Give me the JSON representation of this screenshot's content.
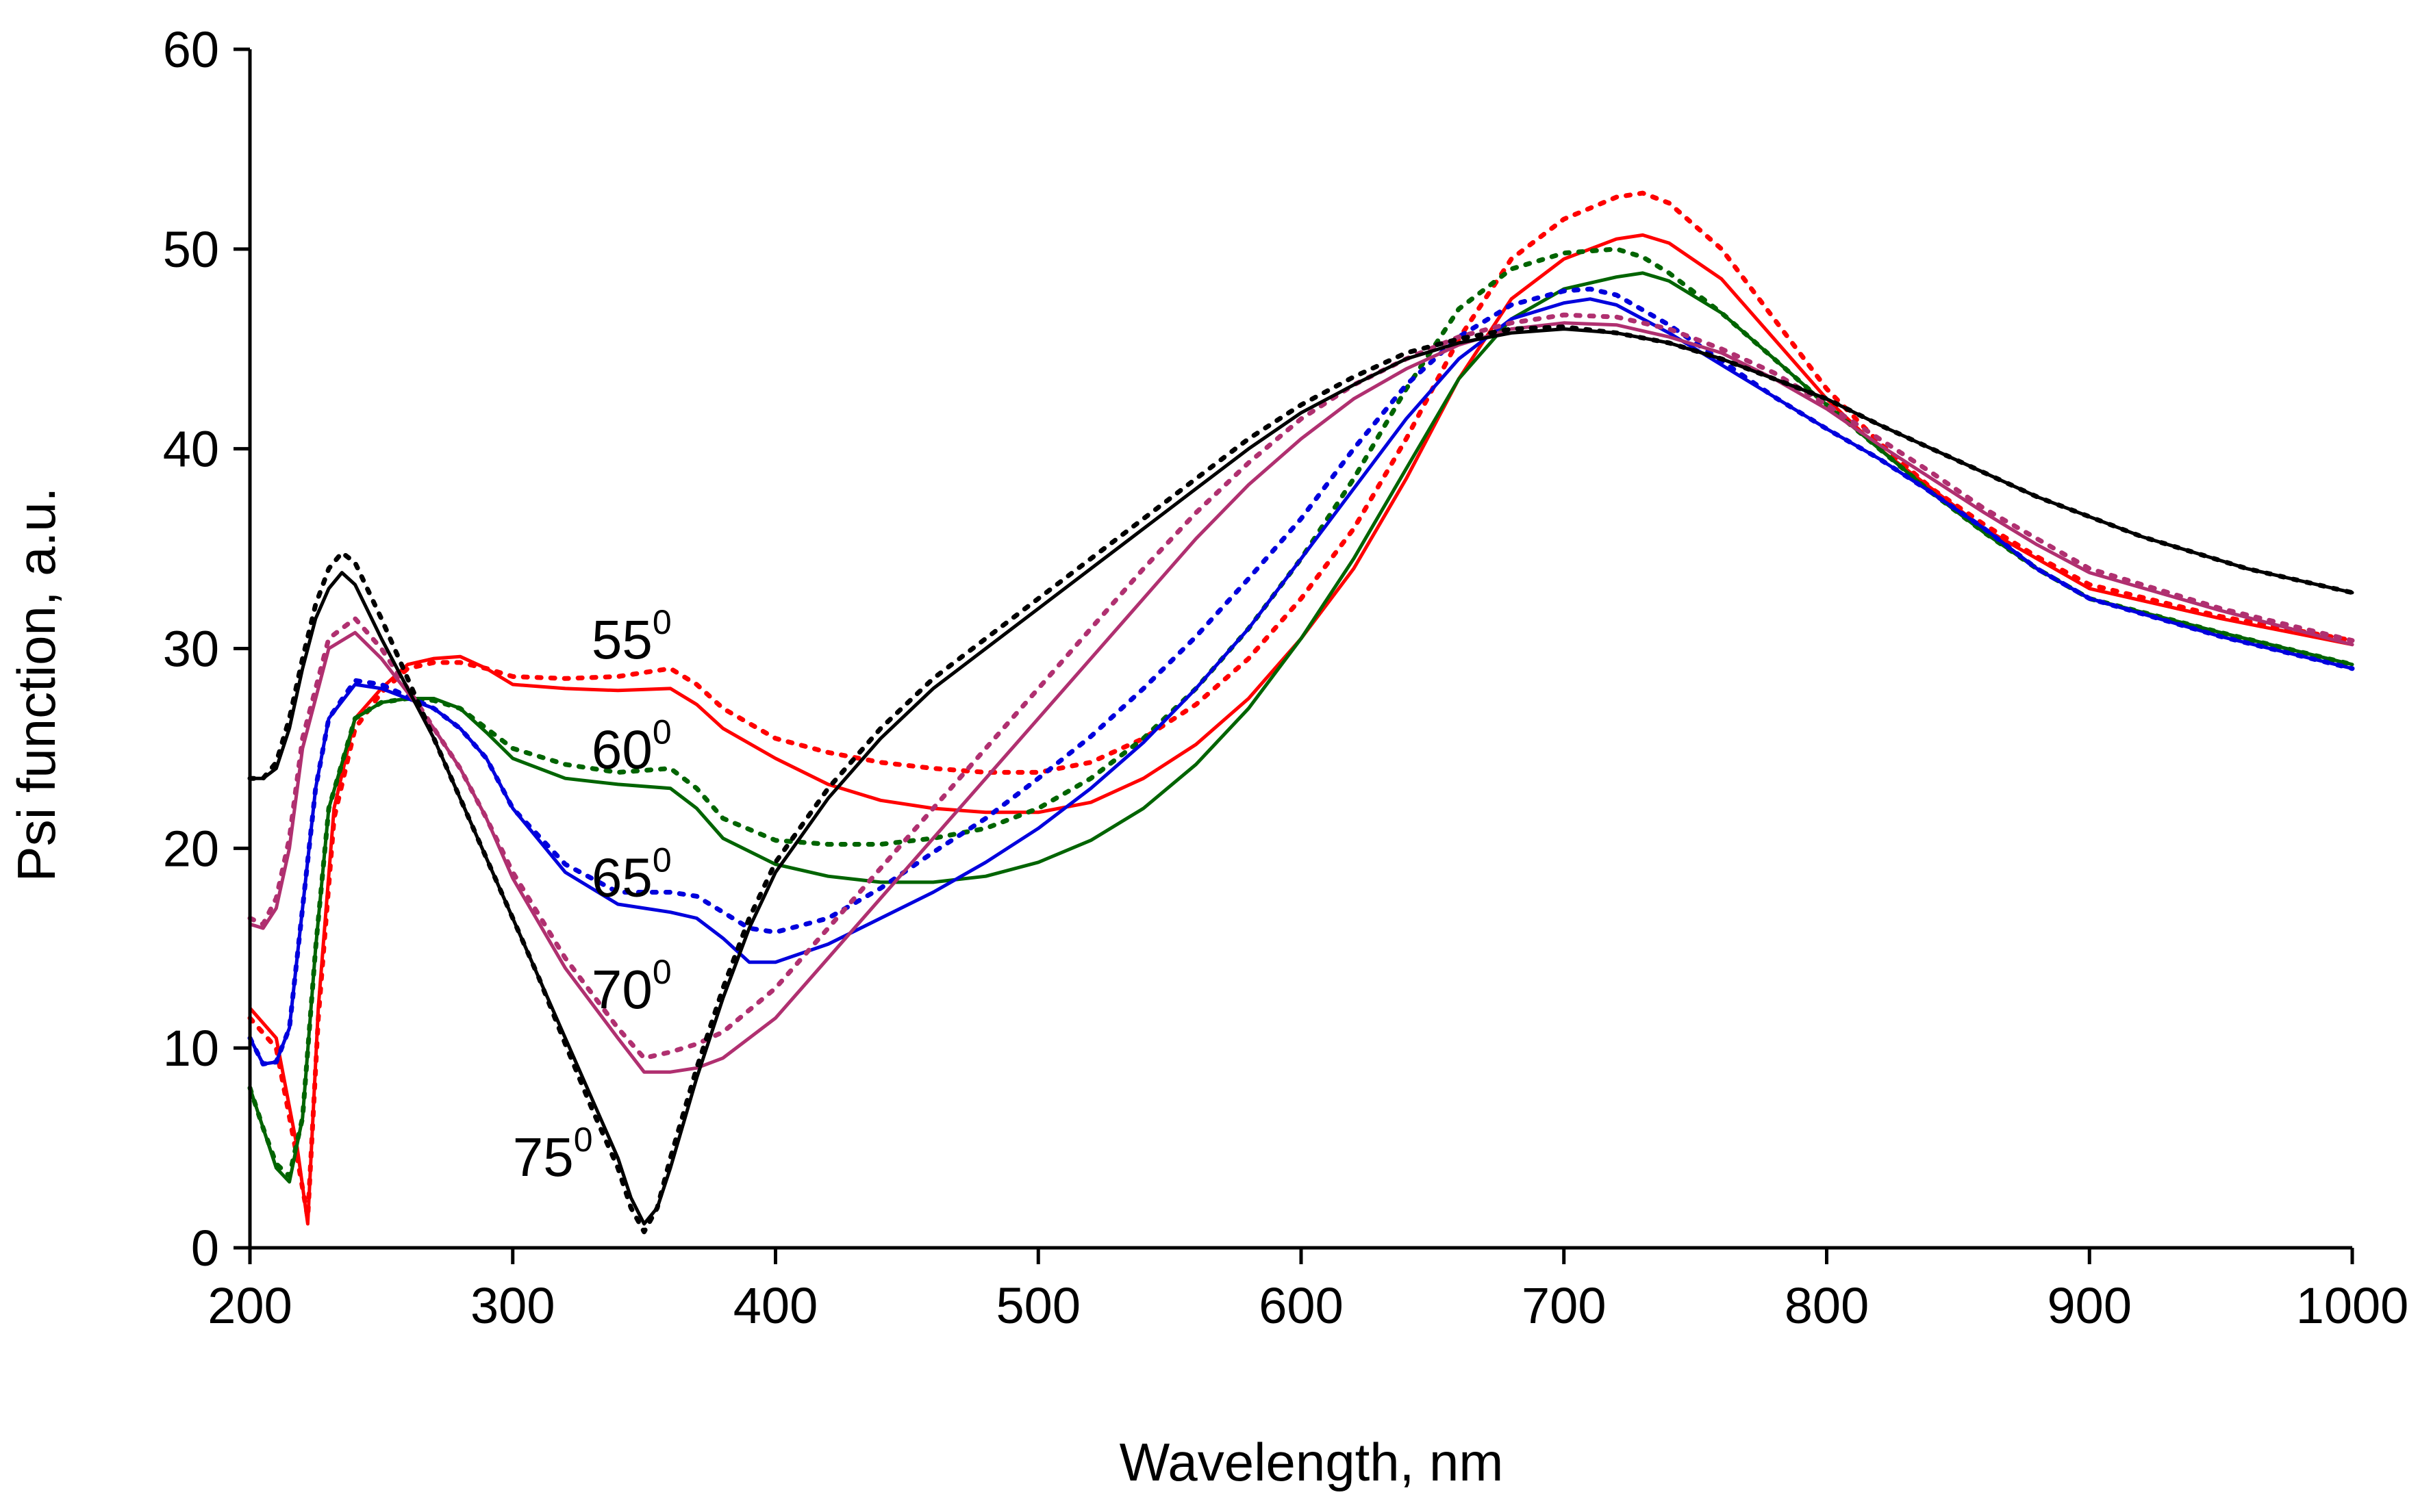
{
  "chart_data": {
    "type": "line",
    "title": "",
    "xlabel": "Wavelength, nm",
    "ylabel": "Psi function, a.u.",
    "xlim": [
      200,
      1000
    ],
    "ylim": [
      0,
      60
    ],
    "xticks": [
      200,
      300,
      400,
      500,
      600,
      700,
      800,
      900,
      1000
    ],
    "yticks": [
      0,
      10,
      20,
      30,
      40,
      50,
      60
    ],
    "grid": false,
    "legend": "none",
    "annotations": [
      {
        "base": "55",
        "sup": "0",
        "x": 330,
        "y": 29.5,
        "refers_to": "55 deg"
      },
      {
        "base": "60",
        "sup": "0",
        "x": 330,
        "y": 24.0,
        "refers_to": "60 deg"
      },
      {
        "base": "65",
        "sup": "0",
        "x": 330,
        "y": 17.6,
        "refers_to": "65 deg"
      },
      {
        "base": "70",
        "sup": "0",
        "x": 330,
        "y": 12.0,
        "refers_to": "70 deg"
      },
      {
        "base": "75",
        "sup": "0",
        "x": 300,
        "y": 3.6,
        "refers_to": "75 deg"
      }
    ],
    "series": [
      {
        "name": "55 deg",
        "style": "solid",
        "color": "#ff0000",
        "x": [
          200,
          210,
          218,
          222,
          226,
          232,
          240,
          250,
          260,
          270,
          280,
          290,
          300,
          320,
          340,
          360,
          370,
          380,
          400,
          420,
          440,
          460,
          480,
          500,
          520,
          540,
          560,
          580,
          600,
          620,
          640,
          660,
          680,
          700,
          720,
          730,
          740,
          760,
          780,
          800,
          820,
          840,
          860,
          880,
          900,
          950,
          1000
        ],
        "y": [
          12.0,
          10.5,
          5.0,
          1.2,
          12.0,
          22.0,
          26.5,
          28.0,
          29.2,
          29.5,
          29.6,
          29.0,
          28.2,
          28.0,
          27.9,
          28.0,
          27.2,
          26.0,
          24.5,
          23.2,
          22.4,
          22.0,
          21.8,
          21.8,
          22.3,
          23.5,
          25.2,
          27.5,
          30.5,
          34.0,
          38.5,
          43.5,
          47.5,
          49.5,
          50.5,
          50.7,
          50.3,
          48.5,
          45.5,
          42.5,
          40.0,
          38.0,
          36.0,
          34.5,
          33.0,
          31.5,
          30.2
        ]
      },
      {
        "name": "55 deg (dotted)",
        "style": "dotted",
        "color": "#ff0000",
        "x": [
          200,
          210,
          218,
          222,
          226,
          232,
          240,
          250,
          260,
          270,
          280,
          290,
          300,
          320,
          340,
          360,
          370,
          380,
          400,
          420,
          440,
          460,
          480,
          500,
          520,
          540,
          560,
          580,
          600,
          620,
          640,
          660,
          680,
          700,
          720,
          730,
          740,
          760,
          780,
          800,
          820,
          840,
          860,
          880,
          900,
          950,
          1000
        ],
        "y": [
          11.5,
          10.0,
          4.5,
          1.5,
          11.5,
          21.5,
          26.0,
          27.8,
          29.0,
          29.3,
          29.3,
          29.0,
          28.6,
          28.5,
          28.6,
          29.0,
          28.2,
          27.0,
          25.5,
          24.8,
          24.3,
          24.0,
          23.8,
          23.8,
          24.3,
          25.5,
          27.2,
          29.5,
          32.5,
          36.0,
          40.5,
          45.5,
          49.5,
          51.5,
          52.6,
          52.8,
          52.3,
          50.0,
          46.5,
          43.0,
          40.3,
          38.0,
          36.2,
          34.6,
          33.2,
          31.6,
          30.4
        ]
      },
      {
        "name": "60 deg",
        "style": "solid",
        "color": "#006400",
        "x": [
          200,
          205,
          210,
          215,
          220,
          225,
          230,
          240,
          250,
          260,
          270,
          280,
          290,
          300,
          320,
          340,
          360,
          370,
          380,
          400,
          420,
          440,
          460,
          480,
          500,
          520,
          540,
          560,
          580,
          600,
          620,
          640,
          660,
          680,
          700,
          720,
          730,
          740,
          760,
          780,
          800,
          820,
          840,
          860,
          880,
          900,
          950,
          1000
        ],
        "y": [
          8.0,
          6.0,
          4.0,
          3.3,
          6.5,
          15.0,
          22.0,
          26.5,
          27.3,
          27.5,
          27.5,
          27.0,
          25.8,
          24.5,
          23.5,
          23.2,
          23.0,
          22.0,
          20.5,
          19.2,
          18.6,
          18.3,
          18.3,
          18.6,
          19.3,
          20.4,
          22.0,
          24.2,
          27.0,
          30.5,
          34.5,
          39.0,
          43.5,
          46.5,
          48.0,
          48.6,
          48.8,
          48.4,
          46.8,
          44.5,
          42.2,
          40.0,
          37.8,
          35.8,
          34.0,
          32.5,
          30.8,
          29.2
        ]
      },
      {
        "name": "60 deg (dotted)",
        "style": "dotted",
        "color": "#006400",
        "x": [
          200,
          205,
          210,
          215,
          220,
          225,
          230,
          240,
          250,
          260,
          270,
          280,
          290,
          300,
          320,
          340,
          360,
          370,
          380,
          400,
          420,
          440,
          460,
          480,
          500,
          520,
          540,
          560,
          580,
          600,
          620,
          640,
          660,
          680,
          700,
          720,
          730,
          740,
          760,
          780,
          800,
          820,
          840,
          860,
          880,
          900,
          950,
          1000
        ],
        "y": [
          8.0,
          6.0,
          4.2,
          3.6,
          6.5,
          15.0,
          22.0,
          26.5,
          27.3,
          27.5,
          27.4,
          27.0,
          26.0,
          25.0,
          24.2,
          23.8,
          24.0,
          23.0,
          21.5,
          20.4,
          20.2,
          20.2,
          20.5,
          21.0,
          22.0,
          23.5,
          25.5,
          28.0,
          31.0,
          34.5,
          38.5,
          43.0,
          47.0,
          49.0,
          49.8,
          50.0,
          49.6,
          48.8,
          46.8,
          44.5,
          42.2,
          40.0,
          37.8,
          35.8,
          34.0,
          32.5,
          30.8,
          29.2
        ]
      },
      {
        "name": "65 deg",
        "style": "solid",
        "color": "#0000dd",
        "x": [
          200,
          205,
          210,
          215,
          220,
          225,
          230,
          240,
          250,
          260,
          270,
          280,
          290,
          300,
          320,
          340,
          360,
          370,
          380,
          390,
          400,
          420,
          440,
          460,
          480,
          500,
          520,
          540,
          560,
          580,
          600,
          620,
          640,
          660,
          680,
          700,
          710,
          720,
          740,
          760,
          780,
          800,
          820,
          840,
          860,
          880,
          900,
          950,
          1000
        ],
        "y": [
          10.5,
          9.2,
          9.3,
          11.0,
          17.0,
          23.0,
          26.5,
          28.2,
          28.0,
          27.5,
          27.0,
          26.0,
          24.5,
          22.0,
          18.8,
          17.2,
          16.8,
          16.5,
          15.5,
          14.3,
          14.3,
          15.2,
          16.5,
          17.8,
          19.3,
          21.0,
          23.0,
          25.3,
          28.0,
          31.0,
          34.5,
          38.0,
          41.5,
          44.5,
          46.5,
          47.3,
          47.5,
          47.2,
          45.8,
          44.2,
          42.6,
          41.0,
          39.5,
          37.8,
          36.0,
          34.0,
          32.5,
          30.6,
          29.0
        ]
      },
      {
        "name": "65 deg (dotted)",
        "style": "dotted",
        "color": "#0000dd",
        "x": [
          200,
          205,
          210,
          215,
          220,
          225,
          230,
          240,
          250,
          260,
          270,
          280,
          290,
          300,
          320,
          340,
          360,
          370,
          380,
          390,
          400,
          420,
          440,
          460,
          480,
          500,
          520,
          540,
          560,
          580,
          600,
          620,
          640,
          660,
          680,
          700,
          710,
          720,
          740,
          760,
          780,
          800,
          820,
          840,
          860,
          880,
          900,
          950,
          1000
        ],
        "y": [
          10.5,
          9.2,
          9.3,
          11.0,
          17.0,
          23.0,
          26.5,
          28.4,
          28.2,
          27.6,
          27.0,
          26.0,
          24.5,
          22.0,
          19.2,
          17.8,
          17.8,
          17.6,
          16.8,
          16.0,
          15.8,
          16.5,
          18.0,
          19.8,
          21.5,
          23.5,
          25.6,
          28.0,
          30.6,
          33.5,
          36.5,
          40.0,
          43.2,
          45.6,
          47.2,
          47.9,
          48.0,
          47.7,
          46.2,
          44.4,
          42.6,
          41.0,
          39.5,
          37.8,
          36.0,
          34.0,
          32.5,
          30.6,
          29.0
        ]
      },
      {
        "name": "70 deg",
        "style": "solid",
        "color": "#b03070",
        "x": [
          200,
          205,
          210,
          215,
          220,
          230,
          240,
          250,
          260,
          270,
          280,
          290,
          300,
          320,
          340,
          350,
          360,
          370,
          380,
          400,
          420,
          440,
          460,
          480,
          500,
          520,
          540,
          560,
          580,
          600,
          620,
          640,
          660,
          680,
          700,
          720,
          740,
          760,
          780,
          800,
          820,
          840,
          860,
          880,
          900,
          950,
          1000
        ],
        "y": [
          16.2,
          16.0,
          17.0,
          20.0,
          25.0,
          30.0,
          30.8,
          29.5,
          27.8,
          26.0,
          24.0,
          21.5,
          18.5,
          14.0,
          10.5,
          8.8,
          8.8,
          9.0,
          9.5,
          11.5,
          14.5,
          17.5,
          20.5,
          23.5,
          26.5,
          29.5,
          32.5,
          35.5,
          38.2,
          40.5,
          42.5,
          44.0,
          45.2,
          46.0,
          46.3,
          46.2,
          45.6,
          44.8,
          43.5,
          42.0,
          40.2,
          38.5,
          36.8,
          35.2,
          33.8,
          31.9,
          30.2
        ]
      },
      {
        "name": "70 deg (dotted)",
        "style": "dotted",
        "color": "#b03070",
        "x": [
          200,
          205,
          210,
          215,
          220,
          230,
          240,
          250,
          260,
          270,
          280,
          290,
          300,
          320,
          340,
          350,
          360,
          370,
          380,
          400,
          420,
          440,
          460,
          480,
          500,
          520,
          540,
          560,
          580,
          600,
          620,
          640,
          660,
          680,
          700,
          720,
          740,
          760,
          780,
          800,
          820,
          840,
          860,
          880,
          900,
          950,
          1000
        ],
        "y": [
          16.5,
          16.2,
          17.5,
          20.5,
          25.5,
          30.5,
          31.5,
          30.0,
          28.0,
          26.0,
          24.0,
          21.5,
          18.8,
          14.5,
          11.0,
          9.5,
          9.8,
          10.2,
          10.8,
          13.0,
          16.0,
          19.0,
          22.0,
          25.0,
          28.0,
          31.0,
          34.0,
          36.8,
          39.3,
          41.5,
          43.2,
          44.5,
          45.6,
          46.3,
          46.7,
          46.6,
          46.0,
          45.0,
          43.8,
          42.2,
          40.5,
          38.8,
          37.0,
          35.5,
          34.0,
          32.0,
          30.4
        ]
      },
      {
        "name": "75 deg",
        "style": "solid",
        "color": "#000000",
        "x": [
          200,
          205,
          210,
          215,
          220,
          225,
          230,
          235,
          240,
          250,
          260,
          270,
          280,
          290,
          300,
          310,
          320,
          330,
          340,
          345,
          350,
          355,
          360,
          370,
          380,
          390,
          400,
          420,
          440,
          460,
          480,
          500,
          520,
          540,
          560,
          580,
          600,
          620,
          640,
          660,
          680,
          700,
          720,
          740,
          760,
          780,
          800,
          820,
          840,
          860,
          880,
          900,
          920,
          940,
          960,
          980,
          1000
        ],
        "y": [
          23.5,
          23.5,
          24.0,
          26.0,
          29.0,
          31.5,
          33.0,
          33.8,
          33.2,
          30.5,
          28.0,
          25.5,
          22.5,
          19.5,
          16.5,
          13.5,
          10.5,
          7.5,
          4.5,
          2.5,
          1.2,
          2.0,
          4.0,
          8.5,
          12.5,
          16.0,
          18.8,
          22.5,
          25.5,
          28.0,
          30.0,
          32.0,
          34.0,
          36.0,
          38.0,
          40.0,
          41.8,
          43.2,
          44.5,
          45.3,
          45.8,
          46.0,
          45.8,
          45.3,
          44.5,
          43.5,
          42.5,
          41.2,
          40.0,
          38.8,
          37.6,
          36.6,
          35.6,
          34.8,
          34.0,
          33.4,
          32.8
        ]
      },
      {
        "name": "75 deg (dotted)",
        "style": "dotted",
        "color": "#000000",
        "x": [
          200,
          205,
          210,
          215,
          220,
          225,
          230,
          235,
          240,
          250,
          260,
          270,
          280,
          290,
          300,
          310,
          320,
          330,
          340,
          345,
          350,
          355,
          360,
          370,
          380,
          390,
          400,
          420,
          440,
          460,
          480,
          500,
          520,
          540,
          560,
          580,
          600,
          620,
          640,
          660,
          680,
          700,
          720,
          740,
          760,
          780,
          800,
          820,
          840,
          860,
          880,
          900,
          920,
          940,
          960,
          980,
          1000
        ],
        "y": [
          23.5,
          23.5,
          24.3,
          26.5,
          29.5,
          32.2,
          34.0,
          34.8,
          34.3,
          31.5,
          28.5,
          25.5,
          22.5,
          19.5,
          16.5,
          13.5,
          10.2,
          7.0,
          4.0,
          2.0,
          0.8,
          2.0,
          4.5,
          9.0,
          13.0,
          16.5,
          19.3,
          23.0,
          26.0,
          28.5,
          30.5,
          32.5,
          34.5,
          36.5,
          38.5,
          40.5,
          42.2,
          43.6,
          44.8,
          45.5,
          46.0,
          46.1,
          45.8,
          45.3,
          44.5,
          43.5,
          42.5,
          41.2,
          40.0,
          38.8,
          37.6,
          36.6,
          35.6,
          34.8,
          34.0,
          33.4,
          32.8
        ]
      }
    ]
  }
}
